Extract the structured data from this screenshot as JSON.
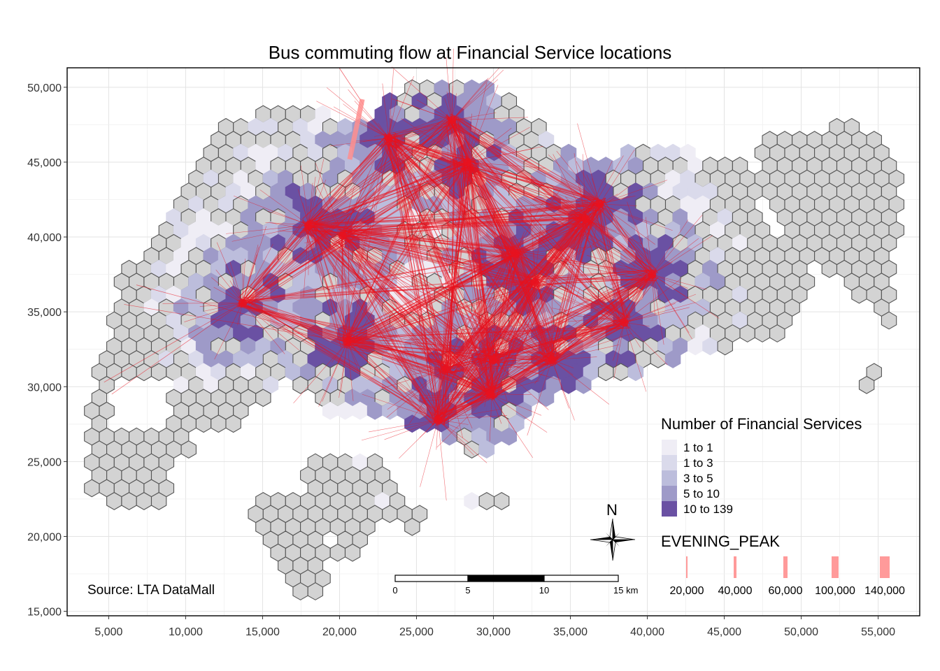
{
  "chart_data": {
    "type": "map",
    "title": "Bus commuting flow at Financial Service locations",
    "x_ticks": [
      5000,
      10000,
      15000,
      20000,
      25000,
      30000,
      35000,
      40000,
      45000,
      50000,
      55000
    ],
    "x_tick_labels": [
      "5,000",
      "10,000",
      "15,000",
      "20,000",
      "25,000",
      "30,000",
      "35,000",
      "40,000",
      "45,000",
      "50,000",
      "55,000"
    ],
    "y_ticks": [
      15000,
      20000,
      25000,
      30000,
      35000,
      40000,
      45000,
      50000
    ],
    "y_tick_labels": [
      "15,000",
      "20,000",
      "25,000",
      "30,000",
      "35,000",
      "40,000",
      "45,000",
      "50,000"
    ],
    "xlim": [
      2300,
      57700
    ],
    "ylim": [
      14700,
      51300
    ],
    "grid": true,
    "fill_legend": {
      "title": "Number of Financial Services",
      "classes": [
        {
          "label": "1 to 1",
          "color": "#efedf5"
        },
        {
          "label": "1 to 3",
          "color": "#dadaeb"
        },
        {
          "label": "3 to 5",
          "color": "#bcbddc"
        },
        {
          "label": "5 to 10",
          "color": "#9e9ac8"
        },
        {
          "label": "10 to 139",
          "color": "#6a51a3"
        }
      ]
    },
    "flow_legend": {
      "title": "EVENING_PEAK",
      "color": "#ff9a9a",
      "items": [
        {
          "label": "20,000",
          "value": 20000
        },
        {
          "label": "40,000",
          "value": 40000
        },
        {
          "label": "60,000",
          "value": 60000
        },
        {
          "label": "100,000",
          "value": 100000
        },
        {
          "label": "140,000",
          "value": 140000
        }
      ]
    },
    "flow_color": "#e8121e",
    "empty_cell_color": "#d3d3d3",
    "hubs": [
      {
        "x": 13700,
        "y": 35600
      },
      {
        "x": 20200,
        "y": 40100
      },
      {
        "x": 20500,
        "y": 33000
      },
      {
        "x": 23200,
        "y": 46600
      },
      {
        "x": 26400,
        "y": 27800
      },
      {
        "x": 30000,
        "y": 31800
      },
      {
        "x": 29800,
        "y": 29500
      },
      {
        "x": 31400,
        "y": 38900
      },
      {
        "x": 32700,
        "y": 37000
      },
      {
        "x": 36000,
        "y": 41200
      },
      {
        "x": 38500,
        "y": 34300
      },
      {
        "x": 40300,
        "y": 37500
      },
      {
        "x": 27300,
        "y": 47800
      },
      {
        "x": 28300,
        "y": 45000
      },
      {
        "x": 18000,
        "y": 40800
      },
      {
        "x": 33800,
        "y": 31800
      },
      {
        "x": 36900,
        "y": 42200
      },
      {
        "x": 26900,
        "y": 31200
      }
    ]
  },
  "source_text": "Source: LTA DataMall",
  "north_label": "N",
  "scale_bar": {
    "labels": [
      "0",
      "5",
      "10",
      "15 km"
    ]
  }
}
